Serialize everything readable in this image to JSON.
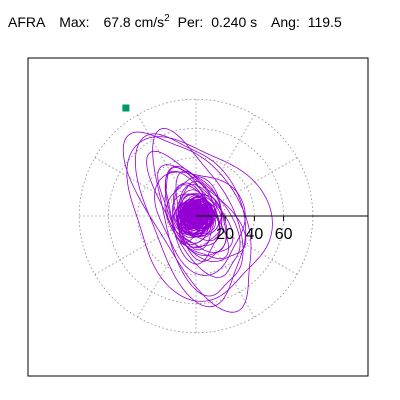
{
  "header": {
    "station": "AFRA",
    "max_label": "Max:",
    "max_value": "67.8 cm/s",
    "max_exponent": "2",
    "per_label": "Per:",
    "per_value": "0.240 s",
    "ang_label": "Ang:",
    "ang_value": "119.5"
  },
  "colors": {
    "trace": "#9400d3",
    "start_marker": "#009966",
    "grid": "#888888",
    "axis": "#000000"
  },
  "chart_data": {
    "type": "polar-particle-motion",
    "title": "",
    "units": "cm/s^2",
    "radial_ticks": [
      20,
      40,
      60
    ],
    "radial_tick_labels": [
      "20",
      "40",
      "60"
    ],
    "radial_max": 80,
    "angular_grid_step_deg": 30,
    "grid": true,
    "max_amplitude": 67.8,
    "principal_angle_deg": 119.5,
    "period_s": 0.24,
    "start_point": {
      "x": -48,
      "y": 74
    },
    "trace_layers": [
      {
        "a": 70,
        "b": 38,
        "rot_deg": 122,
        "loops": 2
      },
      {
        "a": 58,
        "b": 30,
        "rot_deg": 118,
        "loops": 2
      },
      {
        "a": 44,
        "b": 24,
        "rot_deg": 125,
        "loops": 3
      },
      {
        "a": 34,
        "b": 20,
        "rot_deg": 112,
        "loops": 4
      },
      {
        "a": 24,
        "b": 16,
        "rot_deg": 100,
        "loops": 6
      },
      {
        "a": 14,
        "b": 11,
        "rot_deg": 80,
        "loops": 10
      },
      {
        "a": 8,
        "b": 7,
        "rot_deg": 40,
        "loops": 16
      }
    ]
  }
}
